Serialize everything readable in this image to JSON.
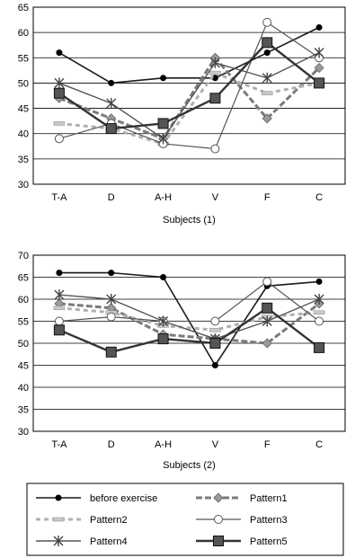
{
  "chart_data": [
    {
      "type": "line",
      "xlabel": "Subjects (1)",
      "ylabel": "",
      "ylim": [
        30,
        65
      ],
      "yticks": [
        30,
        35,
        40,
        45,
        50,
        55,
        60,
        65
      ],
      "grid": true,
      "categories": [
        "T-A",
        "D",
        "A-H",
        "V",
        "F",
        "C"
      ],
      "series": [
        {
          "name": "before exercise",
          "values": [
            56,
            50,
            51,
            51,
            56,
            61
          ]
        },
        {
          "name": "Pattern1",
          "values": [
            47,
            43,
            39,
            55,
            43,
            53
          ]
        },
        {
          "name": "Pattern2",
          "values": [
            42,
            41,
            38,
            52,
            48,
            50
          ]
        },
        {
          "name": "Pattern3",
          "values": [
            39,
            42,
            38,
            37,
            62,
            55
          ]
        },
        {
          "name": "Pattern4",
          "values": [
            50,
            46,
            39,
            54,
            51,
            56
          ]
        },
        {
          "name": "Pattern5",
          "values": [
            48,
            41,
            42,
            47,
            58,
            50
          ]
        }
      ]
    },
    {
      "type": "line",
      "xlabel": "Subjects (2)",
      "ylabel": "",
      "ylim": [
        30,
        70
      ],
      "yticks": [
        30,
        35,
        40,
        45,
        50,
        55,
        60,
        65,
        70
      ],
      "grid": true,
      "categories": [
        "T-A",
        "D",
        "A-H",
        "V",
        "F",
        "C"
      ],
      "series": [
        {
          "name": "before exercise",
          "values": [
            66,
            66,
            65,
            45,
            63,
            64
          ]
        },
        {
          "name": "Pattern1",
          "values": [
            59,
            58,
            52,
            51,
            50,
            59
          ]
        },
        {
          "name": "Pattern2",
          "values": [
            58,
            57,
            54,
            53,
            56,
            57
          ]
        },
        {
          "name": "Pattern3",
          "values": [
            55,
            56,
            55,
            55,
            64,
            55
          ]
        },
        {
          "name": "Pattern4",
          "values": [
            61,
            60,
            55,
            51,
            55,
            60
          ]
        },
        {
          "name": "Pattern5",
          "values": [
            53,
            48,
            51,
            50,
            58,
            49
          ]
        }
      ]
    }
  ],
  "legend": {
    "placement": "bottom",
    "entries": [
      "before exercise",
      "Pattern1",
      "Pattern2",
      "Pattern3",
      "Pattern4",
      "Pattern5"
    ]
  }
}
